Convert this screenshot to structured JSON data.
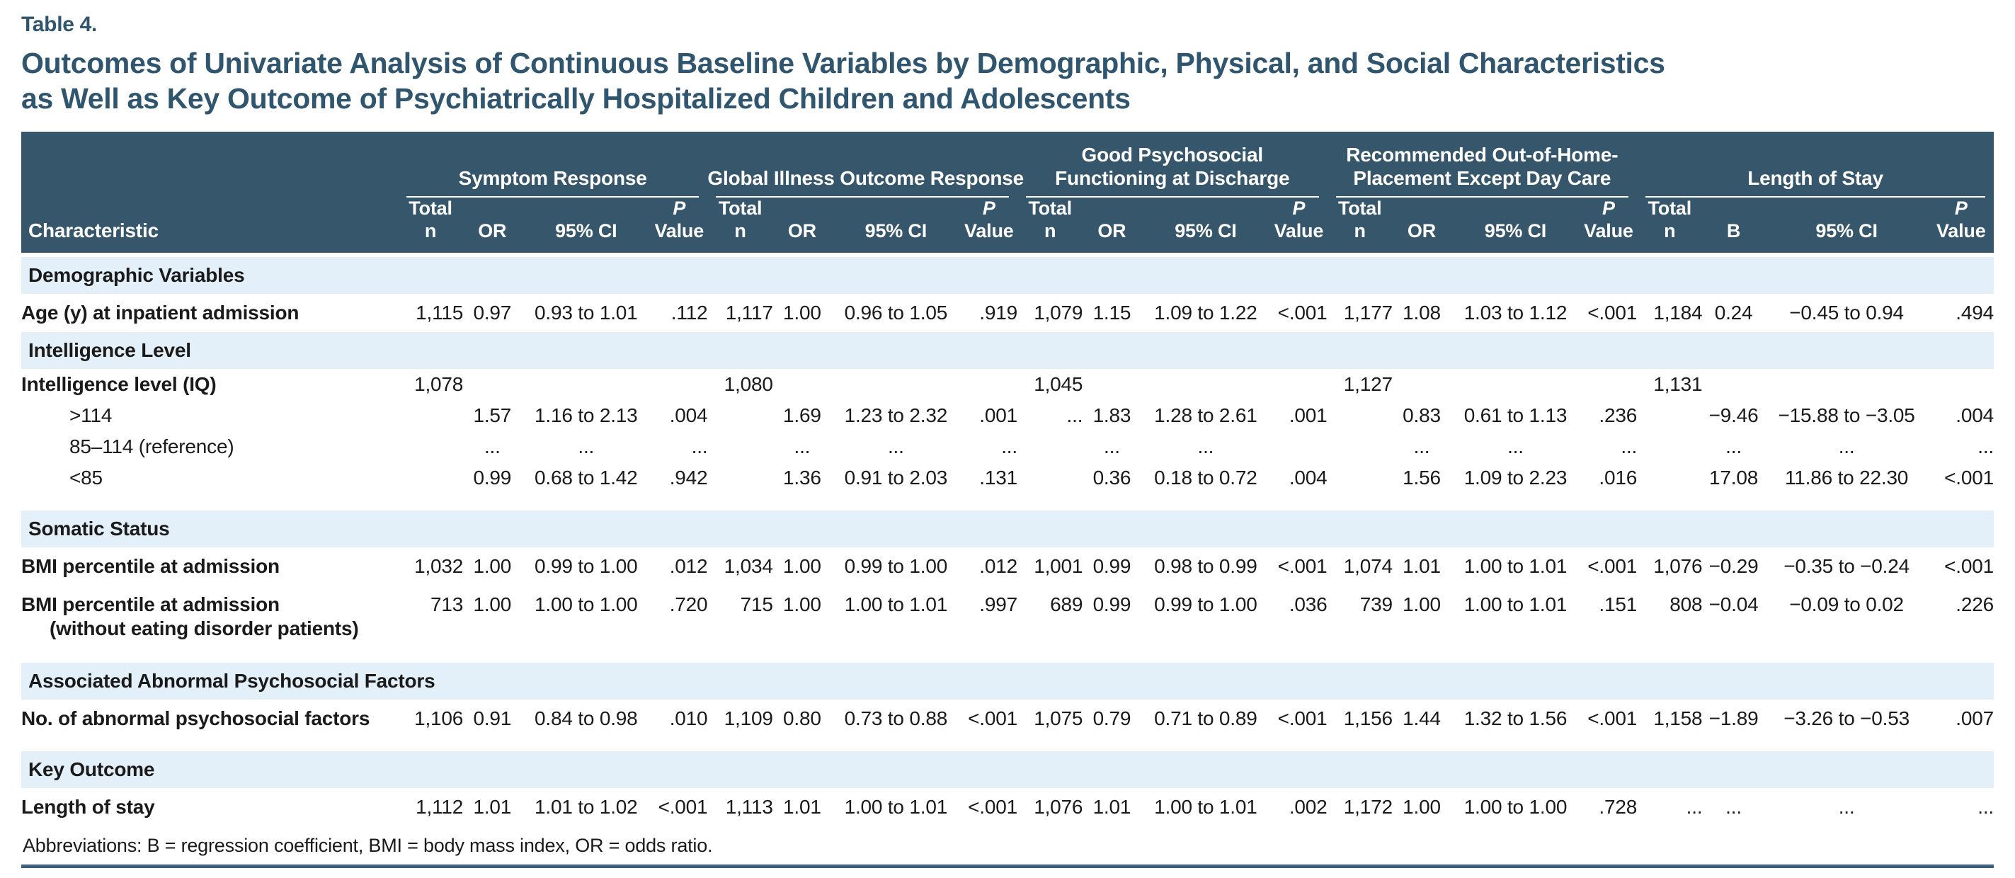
{
  "title": {
    "label": "Table 4.",
    "line1": "Outcomes of Univariate Analysis of Continuous Baseline Variables by Demographic, Physical, and Social Characteristics",
    "line2": "as Well as Key Outcome of Psychiatrically Hospitalized Children and Adolescents"
  },
  "colors": {
    "header_bg": "#35566B",
    "section_band": "#E3F0F9",
    "accent_text": "#2F566E",
    "footer_rule": "#3A5E79"
  },
  "table": {
    "row_header": "Characteristic",
    "groups": [
      {
        "line1": "",
        "line2": "Symptom Response",
        "sub": [
          {
            "top": "Total",
            "bottom": "n"
          },
          {
            "top": "",
            "bottom": "OR"
          },
          {
            "top": "",
            "bottom": "95% CI"
          },
          {
            "top": "P",
            "bottom": "Value"
          }
        ]
      },
      {
        "line1": "",
        "line2": "Global Illness Outcome Response",
        "sub": [
          {
            "top": "Total",
            "bottom": "n"
          },
          {
            "top": "",
            "bottom": "OR"
          },
          {
            "top": "",
            "bottom": "95% CI"
          },
          {
            "top": "P",
            "bottom": "Value"
          }
        ]
      },
      {
        "line1": "Good Psychosocial",
        "line2": "Functioning at Discharge",
        "sub": [
          {
            "top": "Total",
            "bottom": "n"
          },
          {
            "top": "",
            "bottom": "OR"
          },
          {
            "top": "",
            "bottom": "95% CI"
          },
          {
            "top": "P",
            "bottom": "Value"
          }
        ]
      },
      {
        "line1": "Recommended Out-of-Home-",
        "line2": "Placement Except Day Care",
        "sub": [
          {
            "top": "Total",
            "bottom": "n"
          },
          {
            "top": "",
            "bottom": "OR"
          },
          {
            "top": "",
            "bottom": "95% CI"
          },
          {
            "top": "P",
            "bottom": "Value"
          }
        ]
      },
      {
        "line1": "",
        "line2": "Length of Stay",
        "sub": [
          {
            "top": "Total",
            "bottom": "n"
          },
          {
            "top": "",
            "bottom": "B"
          },
          {
            "top": "",
            "bottom": "95% CI"
          },
          {
            "top": "P",
            "bottom": "Value"
          }
        ]
      }
    ],
    "rows": [
      {
        "type": "section",
        "label": "Demographic Variables"
      },
      {
        "type": "data",
        "label": "Age (y) at inpatient admission",
        "cells": [
          "1,115",
          "0.97",
          "0.93 to 1.01",
          ".112",
          "1,117",
          "1.00",
          "0.96 to 1.05",
          ".919",
          "1,079",
          "1.15",
          "1.09 to 1.22",
          "<.001",
          "1,177",
          "1.08",
          "1.03 to 1.12",
          "<.001",
          "1,184",
          "0.24",
          "−0.45 to 0.94",
          ".494"
        ]
      },
      {
        "type": "section",
        "label": "Intelligence Level"
      },
      {
        "type": "data",
        "label": "Intelligence level (IQ)",
        "cells": [
          "1,078",
          "",
          "",
          "",
          "1,080",
          "",
          "",
          "",
          "1,045",
          "",
          "",
          "",
          "1,127",
          "",
          "",
          "",
          "1,131",
          "",
          "",
          ""
        ]
      },
      {
        "type": "data",
        "indent": true,
        "label": ">114",
        "cells": [
          "",
          "1.57",
          "1.16 to 2.13",
          ".004",
          "",
          "1.69",
          "1.23 to 2.32",
          ".001",
          "...",
          "1.83",
          "1.28 to 2.61",
          ".001",
          "",
          "0.83",
          "0.61 to 1.13",
          ".236",
          "",
          "−9.46",
          "−15.88 to −3.05",
          ".004"
        ]
      },
      {
        "type": "data",
        "indent": true,
        "label": "85–114 (reference)",
        "cells": [
          "",
          "...",
          "...",
          "...",
          "",
          "...",
          "...",
          "...",
          "",
          "...",
          "...",
          "",
          "",
          "...",
          "...",
          "...",
          "",
          "...",
          "...",
          "..."
        ]
      },
      {
        "type": "data",
        "indent": true,
        "label": "<85",
        "block_end": true,
        "cells": [
          "",
          "0.99",
          "0.68 to 1.42",
          ".942",
          "",
          "1.36",
          "0.91 to 2.03",
          ".131",
          "",
          "0.36",
          "0.18 to 0.72",
          ".004",
          "",
          "1.56",
          "1.09 to 2.23",
          ".016",
          "",
          "17.08",
          "11.86 to 22.30",
          "<.001"
        ]
      },
      {
        "type": "section",
        "label": "Somatic Status"
      },
      {
        "type": "data",
        "label": "BMI percentile at admission",
        "cells": [
          "1,032",
          "1.00",
          "0.99 to 1.00",
          ".012",
          "1,034",
          "1.00",
          "0.99 to 1.00",
          ".012",
          "1,001",
          "0.99",
          "0.98 to 0.99",
          "<.001",
          "1,074",
          "1.01",
          "1.00 to 1.01",
          "<.001",
          "1,076",
          "−0.29",
          "−0.35 to −0.24",
          "<.001"
        ]
      },
      {
        "type": "data",
        "label": "BMI percentile at admission",
        "label2": "(without eating disorder patients)",
        "block_end": true,
        "cells": [
          "713",
          "1.00",
          "1.00 to 1.00",
          ".720",
          "715",
          "1.00",
          "1.00 to 1.01",
          ".997",
          "689",
          "0.99",
          "0.99 to 1.00",
          ".036",
          "739",
          "1.00",
          "1.00 to 1.01",
          ".151",
          "808",
          "−0.04",
          "−0.09 to 0.02",
          ".226"
        ]
      },
      {
        "type": "section",
        "label": "Associated Abnormal Psychosocial Factors"
      },
      {
        "type": "data",
        "label": "No. of abnormal psychosocial factors",
        "block_end": true,
        "cells": [
          "1,106",
          "0.91",
          "0.84 to 0.98",
          ".010",
          "1,109",
          "0.80",
          "0.73 to 0.88",
          "<.001",
          "1,075",
          "0.79",
          "0.71 to 0.89",
          "<.001",
          "1,156",
          "1.44",
          "1.32 to 1.56",
          "<.001",
          "1,158",
          "−1.89",
          "−3.26 to −0.53",
          ".007"
        ]
      },
      {
        "type": "section",
        "label": "Key Outcome"
      },
      {
        "type": "data",
        "label": "Length of stay",
        "cells": [
          "1,112",
          "1.01",
          "1.01 to 1.02",
          "<.001",
          "1,113",
          "1.01",
          "1.00 to 1.01",
          "<.001",
          "1,076",
          "1.01",
          "1.00 to 1.01",
          ".002",
          "1,172",
          "1.00",
          "1.00 to 1.00",
          ".728",
          "...",
          "...",
          "...",
          "..."
        ]
      }
    ]
  },
  "footer": {
    "abbreviations": "Abbreviations: B = regression coefficient, BMI = body mass index, OR = odds ratio."
  }
}
